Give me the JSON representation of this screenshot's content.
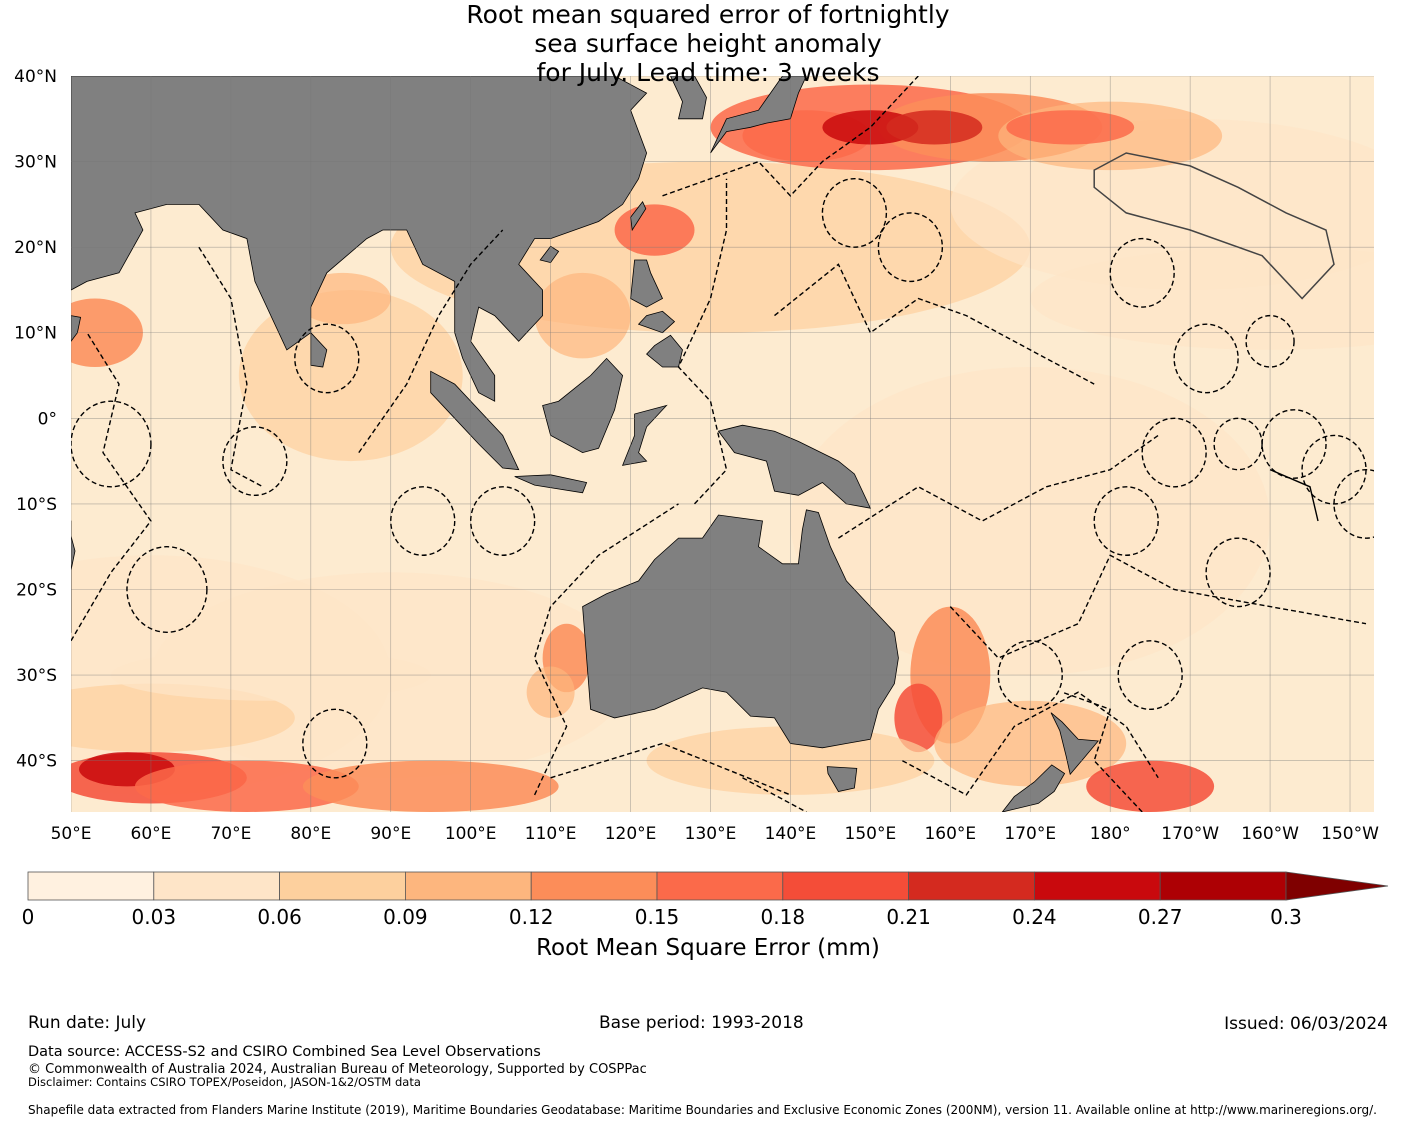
{
  "title_lines": [
    "Root mean squared error of fortnightly",
    "sea surface height anomaly",
    "for July. Lead time: 3 weeks"
  ],
  "map": {
    "lon_range": [
      50,
      213
    ],
    "lat_range": [
      -46,
      40
    ],
    "land_color": "#808080",
    "ocean_base_color": "#fdebd0",
    "lat_labels": [
      {
        "lat": 40,
        "label": "40°N"
      },
      {
        "lat": 30,
        "label": "30°N"
      },
      {
        "lat": 20,
        "label": "20°N"
      },
      {
        "lat": 10,
        "label": "10°N"
      },
      {
        "lat": 0,
        "label": "0°"
      },
      {
        "lat": -10,
        "label": "10°S"
      },
      {
        "lat": -20,
        "label": "20°S"
      },
      {
        "lat": -30,
        "label": "30°S"
      },
      {
        "lat": -40,
        "label": "40°S"
      }
    ],
    "lon_labels": [
      {
        "lon": 50,
        "label": "50°E"
      },
      {
        "lon": 60,
        "label": "60°E"
      },
      {
        "lon": 70,
        "label": "70°E"
      },
      {
        "lon": 80,
        "label": "80°E"
      },
      {
        "lon": 90,
        "label": "90°E"
      },
      {
        "lon": 100,
        "label": "100°E"
      },
      {
        "lon": 110,
        "label": "110°E"
      },
      {
        "lon": 120,
        "label": "120°E"
      },
      {
        "lon": 130,
        "label": "130°E"
      },
      {
        "lon": 140,
        "label": "140°E"
      },
      {
        "lon": 150,
        "label": "150°E"
      },
      {
        "lon": 160,
        "label": "160°E"
      },
      {
        "lon": 170,
        "label": "170°E"
      },
      {
        "lon": 180,
        "label": "180°"
      },
      {
        "lon": 190,
        "label": "170°W"
      },
      {
        "lon": 200,
        "label": "160°W"
      },
      {
        "lon": 210,
        "label": "150°W"
      }
    ]
  },
  "colorbar": {
    "label": "Root Mean Square Error (mm)",
    "ticks": [
      "0",
      "0.03",
      "0.06",
      "0.09",
      "0.12",
      "0.15",
      "0.18",
      "0.21",
      "0.24",
      "0.27",
      "0.3"
    ],
    "colors": [
      "#fff1e0",
      "#fee5c8",
      "#fdd09e",
      "#fdb67e",
      "#fc8d59",
      "#fb6a4a",
      "#f44d38",
      "#d42a1f",
      "#c9090d",
      "#ad0004"
    ],
    "extend_color": "#7f0000"
  },
  "footer": {
    "run_date": "Run date: July",
    "base_period": "Base period: 1993-2018",
    "issued": "Issued: 06/03/2024",
    "data_source": "Data source: ACCESS-S2 and CSIRO Combined Sea Level Observations",
    "copyright": "© Commonwealth of Australia 2024, Australian Bureau of Meteorology, Supported by COSPPac",
    "disclaimer": "Disclaimer: Contains CSIRO TOPEX/Poseidon, JASON-1&2/OSTM data",
    "shapefile": "Shapefile data extracted from Flanders Marine Institute (2019), Maritime Boundaries Geodatabase: Maritime Boundaries and Exclusive Economic Zones (200NM), version 11. Available online at http://www.marineregions.org/."
  }
}
